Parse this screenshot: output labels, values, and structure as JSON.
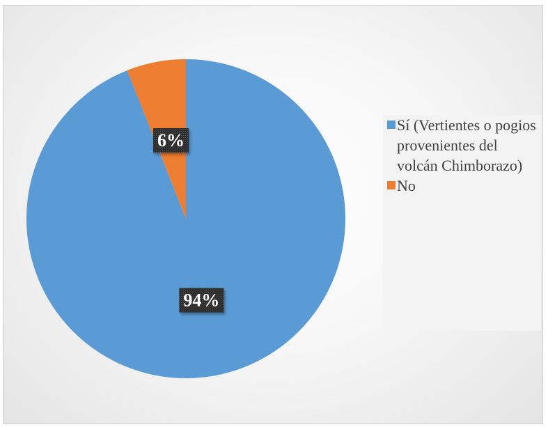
{
  "chart_data": {
    "type": "pie",
    "title": "",
    "slices": [
      {
        "label": "Sí (Vertientes o pogios provenientes del volcán Chimborazo)",
        "value": 94,
        "data_label": "94%",
        "color": "#5b9bd5"
      },
      {
        "label": "No",
        "value": 6,
        "data_label": "6%",
        "color": "#ed7d31"
      }
    ],
    "legend_position": "right",
    "start_angle": "top",
    "direction": "clockwise"
  }
}
